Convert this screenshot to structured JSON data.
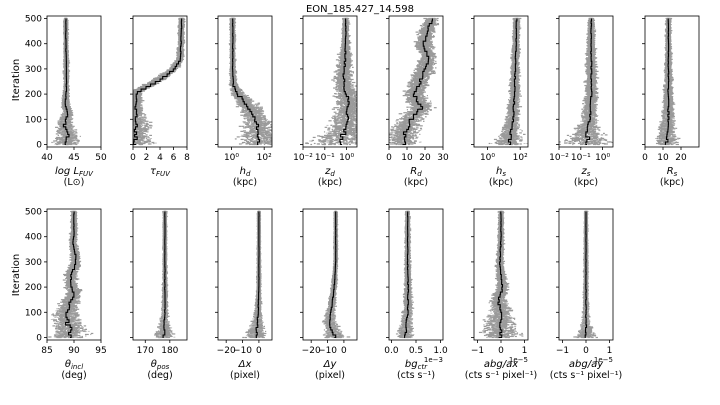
{
  "figure": {
    "title": "EON_185.427_14.598",
    "ylabel": "Iteration"
  },
  "chart_data": [
    {
      "type": "line",
      "name": "log L_FUV",
      "xscale": "linear",
      "xlim": [
        40,
        50
      ],
      "xticks": [
        {
          "v": 40,
          "t": "40"
        },
        {
          "v": 45,
          "t": "45"
        },
        {
          "v": 50,
          "t": "50"
        }
      ],
      "ylim": [
        -10,
        510
      ],
      "yticks": [
        0,
        100,
        200,
        300,
        400,
        500
      ],
      "xlabel": "log L_FUV",
      "unit": "(L⊙)",
      "iterations": [
        500,
        400,
        300,
        220,
        160,
        120,
        80,
        40,
        0
      ],
      "chain": [
        43.5,
        43.5,
        43.6,
        43.6,
        43.4,
        43.8,
        43.2,
        43.9,
        43.5
      ],
      "spread": [
        0.2,
        0.2,
        0.3,
        0.3,
        0.6,
        0.8,
        1.2,
        1.5,
        2.5
      ],
      "multiplier": ""
    },
    {
      "type": "line",
      "name": "tau_FUV",
      "xscale": "linear",
      "xlim": [
        0,
        8
      ],
      "xticks": [
        {
          "v": 0,
          "t": "0"
        },
        {
          "v": 2,
          "t": "2"
        },
        {
          "v": 4,
          "t": "4"
        },
        {
          "v": 6,
          "t": "6"
        },
        {
          "v": 8,
          "t": "8"
        }
      ],
      "ylim": [
        -10,
        510
      ],
      "yticks": [
        0,
        100,
        200,
        300,
        400,
        500
      ],
      "xlabel": "τ_FUV",
      "unit": "",
      "iterations": [
        500,
        400,
        340,
        300,
        260,
        230,
        210,
        150,
        60,
        0
      ],
      "chain": [
        7.2,
        7.1,
        7.0,
        6.0,
        4.0,
        2.0,
        0.6,
        0.4,
        0.5,
        0.3
      ],
      "spread": [
        0.3,
        0.3,
        0.4,
        0.6,
        0.8,
        0.8,
        0.6,
        0.8,
        2.0,
        2.5
      ],
      "multiplier": ""
    },
    {
      "type": "line",
      "name": "h_d",
      "xscale": "log",
      "xlim": [
        0.15,
        300
      ],
      "xticks": [
        {
          "v": 1,
          "t": "10⁰"
        },
        {
          "v": 100,
          "t": "10²"
        }
      ],
      "ylim": [
        -10,
        510
      ],
      "yticks": [
        0,
        100,
        200,
        300,
        400,
        500
      ],
      "xlabel": "h_d",
      "unit": "(kpc)",
      "iterations": [
        500,
        300,
        240,
        200,
        160,
        120,
        80,
        40,
        0
      ],
      "chain": [
        1.2,
        1.2,
        1.3,
        2.5,
        8,
        25,
        40,
        50,
        60
      ],
      "spread": [
        0.1,
        0.1,
        0.15,
        0.4,
        0.6,
        0.7,
        0.8,
        1.0,
        1.2
      ],
      "multiplier": ""
    },
    {
      "type": "line",
      "name": "z_d",
      "xscale": "log",
      "xlim": [
        0.01,
        3
      ],
      "xticks": [
        {
          "v": 0.01,
          "t": "10⁻²"
        },
        {
          "v": 0.1,
          "t": "10⁻¹"
        },
        {
          "v": 1,
          "t": "10⁰"
        }
      ],
      "ylim": [
        -10,
        510
      ],
      "yticks": [
        0,
        100,
        200,
        300,
        400,
        500
      ],
      "xlabel": "z_d",
      "unit": "(kpc)",
      "iterations": [
        500,
        400,
        300,
        250,
        200,
        150,
        100,
        50,
        0
      ],
      "chain": [
        0.9,
        0.9,
        0.8,
        0.7,
        1.0,
        1.2,
        1.0,
        0.7,
        0.5
      ],
      "spread": [
        0.1,
        0.15,
        0.3,
        0.4,
        0.5,
        0.5,
        0.6,
        0.8,
        1.5
      ],
      "multiplier": ""
    },
    {
      "type": "line",
      "name": "R_d",
      "xscale": "linear",
      "xlim": [
        0,
        30
      ],
      "xticks": [
        {
          "v": 0,
          "t": "0"
        },
        {
          "v": 10,
          "t": "10"
        },
        {
          "v": 20,
          "t": "20"
        },
        {
          "v": 30,
          "t": "30"
        }
      ],
      "ylim": [
        -10,
        510
      ],
      "yticks": [
        0,
        100,
        200,
        300,
        400,
        500
      ],
      "xlabel": "R_d",
      "unit": "(kpc)",
      "iterations": [
        500,
        450,
        400,
        350,
        300,
        250,
        200,
        150,
        100,
        50,
        0
      ],
      "chain": [
        24,
        21,
        19,
        22,
        20,
        17,
        14,
        18,
        12,
        9,
        8
      ],
      "spread": [
        3,
        4,
        4,
        4,
        5,
        5,
        5,
        6,
        6,
        7,
        8
      ],
      "multiplier": ""
    },
    {
      "type": "line",
      "name": "h_s",
      "xscale": "log",
      "xlim": [
        0.15,
        300
      ],
      "xticks": [
        {
          "v": 1,
          "t": "10⁰"
        },
        {
          "v": 100,
          "t": "10²"
        }
      ],
      "ylim": [
        -10,
        510
      ],
      "yticks": [
        0,
        100,
        200,
        300,
        400,
        500
      ],
      "xlabel": "h_s",
      "unit": "(kpc)",
      "iterations": [
        500,
        400,
        300,
        200,
        150,
        100,
        50,
        0
      ],
      "chain": [
        60,
        55,
        50,
        45,
        40,
        35,
        25,
        20
      ],
      "spread": [
        0.15,
        0.15,
        0.2,
        0.25,
        0.3,
        0.35,
        0.5,
        1.0
      ],
      "multiplier": ""
    },
    {
      "type": "line",
      "name": "z_s",
      "xscale": "log",
      "xlim": [
        0.01,
        3
      ],
      "xticks": [
        {
          "v": 0.01,
          "t": "10⁻²"
        },
        {
          "v": 0.1,
          "t": "10⁻¹"
        },
        {
          "v": 1,
          "t": "10⁰"
        }
      ],
      "ylim": [
        -10,
        510
      ],
      "yticks": [
        0,
        100,
        200,
        300,
        400,
        500
      ],
      "xlabel": "z_s",
      "unit": "(kpc)",
      "iterations": [
        500,
        400,
        300,
        200,
        100,
        50,
        0
      ],
      "chain": [
        0.3,
        0.3,
        0.3,
        0.3,
        0.25,
        0.2,
        0.2
      ],
      "spread": [
        0.1,
        0.15,
        0.2,
        0.25,
        0.3,
        0.5,
        1.2
      ],
      "multiplier": ""
    },
    {
      "type": "line",
      "name": "R_s",
      "xscale": "linear",
      "xlim": [
        0,
        30
      ],
      "xticks": [
        {
          "v": 0,
          "t": "0"
        },
        {
          "v": 10,
          "t": "10"
        },
        {
          "v": 20,
          "t": "20"
        }
      ],
      "ylim": [
        -10,
        510
      ],
      "yticks": [
        0,
        100,
        200,
        300,
        400,
        500
      ],
      "xlabel": "R_s",
      "unit": "(kpc)",
      "iterations": [
        500,
        400,
        300,
        200,
        100,
        50,
        0
      ],
      "chain": [
        13,
        13,
        13,
        13,
        13,
        12,
        12
      ],
      "spread": [
        1,
        1,
        1.5,
        2,
        3,
        4,
        6
      ],
      "multiplier": ""
    },
    {
      "type": "line",
      "name": "theta_incl",
      "xscale": "linear",
      "xlim": [
        85,
        95
      ],
      "xticks": [
        {
          "v": 85,
          "t": "85"
        },
        {
          "v": 90,
          "t": "90"
        },
        {
          "v": 95,
          "t": "95"
        }
      ],
      "ylim": [
        -10,
        510
      ],
      "yticks": [
        0,
        100,
        200,
        300,
        400,
        500
      ],
      "xlabel": "θ_incl",
      "unit": "(deg)",
      "iterations": [
        500,
        420,
        380,
        340,
        300,
        260,
        220,
        180,
        140,
        100,
        60,
        30,
        0
      ],
      "chain": [
        90,
        90,
        89.8,
        90.2,
        90.4,
        89.6,
        89.4,
        90.0,
        89.2,
        88.6,
        88.8,
        89.4,
        89.0
      ],
      "spread": [
        0.3,
        0.4,
        0.5,
        0.6,
        0.8,
        0.9,
        1.0,
        1.2,
        1.3,
        1.8,
        2.5,
        3.0,
        3.0
      ],
      "multiplier": ""
    },
    {
      "type": "line",
      "name": "theta_pos",
      "xscale": "linear",
      "xlim": [
        165,
        187
      ],
      "xticks": [
        {
          "v": 170,
          "t": "170"
        },
        {
          "v": 180,
          "t": "180"
        }
      ],
      "ylim": [
        -10,
        510
      ],
      "yticks": [
        0,
        100,
        200,
        300,
        400,
        500
      ],
      "xlabel": "θ_pos",
      "unit": "(deg)",
      "iterations": [
        500,
        400,
        300,
        200,
        100,
        60,
        30,
        0
      ],
      "chain": [
        178,
        178,
        178,
        178,
        178,
        177.5,
        178,
        177
      ],
      "spread": [
        0.3,
        0.3,
        0.4,
        0.5,
        0.8,
        1.5,
        2.5,
        4.0
      ],
      "multiplier": ""
    },
    {
      "type": "line",
      "name": "delta_x",
      "xscale": "linear",
      "xlim": [
        -25,
        8
      ],
      "xticks": [
        {
          "v": -20,
          "t": "−20"
        },
        {
          "v": -10,
          "t": "−10"
        },
        {
          "v": 0,
          "t": "0"
        }
      ],
      "ylim": [
        -10,
        510
      ],
      "yticks": [
        0,
        100,
        200,
        300,
        400,
        500
      ],
      "xlabel": "Δx",
      "unit": "(pixel)",
      "iterations": [
        500,
        400,
        300,
        200,
        100,
        50,
        0
      ],
      "chain": [
        0,
        0,
        0,
        0,
        -0.5,
        -1,
        -2
      ],
      "spread": [
        0.2,
        0.2,
        0.4,
        0.6,
        1.5,
        3,
        6
      ],
      "multiplier": ""
    },
    {
      "type": "line",
      "name": "delta_y",
      "xscale": "linear",
      "xlim": [
        -25,
        8
      ],
      "xticks": [
        {
          "v": -20,
          "t": "−20"
        },
        {
          "v": -10,
          "t": "−10"
        },
        {
          "v": 0,
          "t": "0"
        }
      ],
      "ylim": [
        -10,
        510
      ],
      "yticks": [
        0,
        100,
        200,
        300,
        400,
        500
      ],
      "xlabel": "Δy",
      "unit": "(pixel)",
      "iterations": [
        500,
        400,
        300,
        200,
        150,
        100,
        60,
        30,
        0
      ],
      "chain": [
        -5,
        -5,
        -5,
        -6,
        -7,
        -8,
        -9,
        -7,
        -5
      ],
      "spread": [
        0.3,
        0.4,
        0.5,
        1.0,
        1.5,
        2.0,
        3.0,
        4.0,
        6.0
      ],
      "multiplier": ""
    },
    {
      "type": "line",
      "name": "bg_ctr",
      "xscale": "linear",
      "xlim": [
        -0.05,
        1.05
      ],
      "xticks": [
        {
          "v": 0,
          "t": "0.0"
        },
        {
          "v": 0.5,
          "t": "0.5"
        },
        {
          "v": 1,
          "t": "1.0"
        }
      ],
      "ylim": [
        -10,
        510
      ],
      "yticks": [
        0,
        100,
        200,
        300,
        400,
        500
      ],
      "xlabel": "bg_ctr",
      "unit": "(cts s⁻¹)",
      "iterations": [
        500,
        400,
        300,
        200,
        100,
        50,
        0
      ],
      "chain": [
        0.33,
        0.33,
        0.33,
        0.34,
        0.33,
        0.3,
        0.28
      ],
      "spread": [
        0.02,
        0.03,
        0.04,
        0.05,
        0.08,
        0.1,
        0.15
      ],
      "multiplier": "1e−3"
    },
    {
      "type": "line",
      "name": "abg_ax",
      "xscale": "linear",
      "xlim": [
        -1.15,
        1.15
      ],
      "xticks": [
        {
          "v": -1,
          "t": "−1"
        },
        {
          "v": 0,
          "t": "0"
        },
        {
          "v": 1,
          "t": "1"
        }
      ],
      "ylim": [
        -10,
        510
      ],
      "yticks": [
        0,
        100,
        200,
        300,
        400,
        500
      ],
      "xlabel": "abg/ax",
      "unit": "(cts s⁻¹ pixel⁻¹)",
      "iterations": [
        500,
        400,
        300,
        200,
        150,
        100,
        50,
        0
      ],
      "chain": [
        0,
        0,
        -0.05,
        0.05,
        -0.1,
        0,
        -0.05,
        0
      ],
      "spread": [
        0.05,
        0.08,
        0.12,
        0.2,
        0.3,
        0.4,
        0.6,
        0.8
      ],
      "multiplier": "1e−5"
    },
    {
      "type": "line",
      "name": "abg_ay",
      "xscale": "linear",
      "xlim": [
        -1.15,
        1.15
      ],
      "xticks": [
        {
          "v": -1,
          "t": "−1"
        },
        {
          "v": 0,
          "t": "0"
        },
        {
          "v": 1,
          "t": "1"
        }
      ],
      "ylim": [
        -10,
        510
      ],
      "yticks": [
        0,
        100,
        200,
        300,
        400,
        500
      ],
      "xlabel": "abg/ay",
      "unit": "(cts s⁻¹ pixel⁻¹)",
      "iterations": [
        500,
        400,
        300,
        200,
        100,
        50,
        0
      ],
      "chain": [
        0,
        0,
        0,
        0,
        0,
        0,
        0
      ],
      "spread": [
        0.02,
        0.03,
        0.04,
        0.05,
        0.08,
        0.15,
        0.4
      ],
      "multiplier": "1e−5"
    }
  ]
}
